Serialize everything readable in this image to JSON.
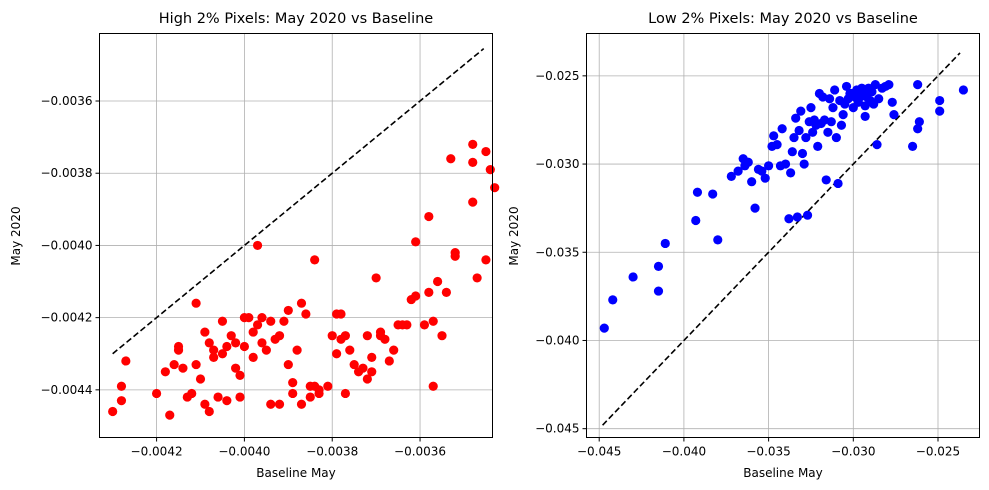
{
  "chart_data": [
    {
      "type": "scatter",
      "title": "High 2% Pixels: May 2020 vs Baseline",
      "xlabel": "Baseline May",
      "ylabel": "May 2020",
      "xlim": [
        -0.00433,
        -0.003435
      ],
      "ylim": [
        -0.004532,
        -0.003413
      ],
      "xticks": [
        -0.0042,
        -0.004,
        -0.0038,
        -0.0036
      ],
      "xtick_labels": [
        "−0.0042",
        "−0.0040",
        "−0.0038",
        "−0.0036"
      ],
      "yticks": [
        -0.0044,
        -0.0042,
        -0.004,
        -0.0038,
        -0.0036
      ],
      "ytick_labels": [
        "−0.0044",
        "−0.0042",
        "−0.0040",
        "−0.0038",
        "−0.0036"
      ],
      "grid": true,
      "marker_color": "#ff0000",
      "reference_line": {
        "x": [
          -0.0043,
          -0.003455
        ],
        "y": [
          -0.0043,
          -0.003455
        ],
        "style": "dashed",
        "color": "#000000"
      },
      "points": [
        [
          -0.0043,
          -0.00446
        ],
        [
          -0.00428,
          -0.00443
        ],
        [
          -0.00428,
          -0.00439
        ],
        [
          -0.00427,
          -0.00432
        ],
        [
          -0.0042,
          -0.00441
        ],
        [
          -0.00418,
          -0.00435
        ],
        [
          -0.00417,
          -0.00447
        ],
        [
          -0.00416,
          -0.00433
        ],
        [
          -0.00415,
          -0.00428
        ],
        [
          -0.00415,
          -0.00429
        ],
        [
          -0.00414,
          -0.00434
        ],
        [
          -0.00413,
          -0.00442
        ],
        [
          -0.00412,
          -0.00441
        ],
        [
          -0.00411,
          -0.00433
        ],
        [
          -0.00411,
          -0.00416
        ],
        [
          -0.0041,
          -0.00437
        ],
        [
          -0.00409,
          -0.00424
        ],
        [
          -0.00409,
          -0.00444
        ],
        [
          -0.00408,
          -0.00446
        ],
        [
          -0.00408,
          -0.00427
        ],
        [
          -0.00407,
          -0.00429
        ],
        [
          -0.00407,
          -0.00431
        ],
        [
          -0.00406,
          -0.00442
        ],
        [
          -0.00405,
          -0.0043
        ],
        [
          -0.00405,
          -0.00421
        ],
        [
          -0.00404,
          -0.00443
        ],
        [
          -0.00404,
          -0.00428
        ],
        [
          -0.00403,
          -0.00425
        ],
        [
          -0.00402,
          -0.00434
        ],
        [
          -0.00402,
          -0.00427
        ],
        [
          -0.00401,
          -0.00436
        ],
        [
          -0.00401,
          -0.00442
        ],
        [
          -0.004,
          -0.00428
        ],
        [
          -0.004,
          -0.0042
        ],
        [
          -0.00399,
          -0.0042
        ],
        [
          -0.00398,
          -0.00431
        ],
        [
          -0.00398,
          -0.00424
        ],
        [
          -0.00397,
          -0.004
        ],
        [
          -0.00397,
          -0.00422
        ],
        [
          -0.00396,
          -0.0042
        ],
        [
          -0.00396,
          -0.00427
        ],
        [
          -0.00395,
          -0.00429
        ],
        [
          -0.00394,
          -0.00421
        ],
        [
          -0.00394,
          -0.00444
        ],
        [
          -0.00393,
          -0.00426
        ],
        [
          -0.00392,
          -0.00425
        ],
        [
          -0.00392,
          -0.00444
        ],
        [
          -0.00391,
          -0.00421
        ],
        [
          -0.0039,
          -0.00418
        ],
        [
          -0.0039,
          -0.00433
        ],
        [
          -0.00389,
          -0.00438
        ],
        [
          -0.00389,
          -0.00441
        ],
        [
          -0.00388,
          -0.00429
        ],
        [
          -0.00387,
          -0.00444
        ],
        [
          -0.00387,
          -0.00416
        ],
        [
          -0.00386,
          -0.00419
        ],
        [
          -0.00385,
          -0.00442
        ],
        [
          -0.00385,
          -0.00439
        ],
        [
          -0.00384,
          -0.00404
        ],
        [
          -0.00384,
          -0.00439
        ],
        [
          -0.00383,
          -0.00441
        ],
        [
          -0.00383,
          -0.0044
        ],
        [
          -0.00381,
          -0.00439
        ],
        [
          -0.0038,
          -0.00425
        ],
        [
          -0.00379,
          -0.00419
        ],
        [
          -0.00379,
          -0.0043
        ],
        [
          -0.00378,
          -0.00419
        ],
        [
          -0.00378,
          -0.00426
        ],
        [
          -0.00377,
          -0.00425
        ],
        [
          -0.00377,
          -0.00441
        ],
        [
          -0.00376,
          -0.00429
        ],
        [
          -0.00375,
          -0.00433
        ],
        [
          -0.00374,
          -0.00435
        ],
        [
          -0.00373,
          -0.00434
        ],
        [
          -0.00372,
          -0.00425
        ],
        [
          -0.00372,
          -0.00437
        ],
        [
          -0.00371,
          -0.00435
        ],
        [
          -0.00371,
          -0.00431
        ],
        [
          -0.0037,
          -0.00409
        ],
        [
          -0.00369,
          -0.00425
        ],
        [
          -0.00369,
          -0.00424
        ],
        [
          -0.00368,
          -0.00426
        ],
        [
          -0.00367,
          -0.00432
        ],
        [
          -0.00366,
          -0.00429
        ],
        [
          -0.00365,
          -0.00422
        ],
        [
          -0.00364,
          -0.00422
        ],
        [
          -0.00363,
          -0.00422
        ],
        [
          -0.00362,
          -0.00415
        ],
        [
          -0.00361,
          -0.00414
        ],
        [
          -0.00361,
          -0.00399
        ],
        [
          -0.00359,
          -0.00422
        ],
        [
          -0.00358,
          -0.00413
        ],
        [
          -0.00358,
          -0.00392
        ],
        [
          -0.00357,
          -0.00439
        ],
        [
          -0.00357,
          -0.00421
        ],
        [
          -0.00356,
          -0.0041
        ],
        [
          -0.00355,
          -0.00425
        ],
        [
          -0.00354,
          -0.00413
        ],
        [
          -0.00353,
          -0.00376
        ],
        [
          -0.00352,
          -0.00402
        ],
        [
          -0.00352,
          -0.00403
        ],
        [
          -0.00348,
          -0.00388
        ],
        [
          -0.00348,
          -0.00372
        ],
        [
          -0.00348,
          -0.00377
        ],
        [
          -0.00347,
          -0.00409
        ],
        [
          -0.00345,
          -0.00404
        ],
        [
          -0.00345,
          -0.00374
        ],
        [
          -0.00344,
          -0.00379
        ],
        [
          -0.00343,
          -0.00384
        ]
      ]
    },
    {
      "type": "scatter",
      "title": "Low 2% Pixels: May 2020 vs Baseline",
      "xlabel": "Baseline May",
      "ylabel": "May 2020",
      "xlim": [
        -0.04575,
        -0.02255
      ],
      "ylim": [
        -0.0455,
        -0.0226
      ],
      "xticks": [
        -0.045,
        -0.04,
        -0.035,
        -0.03,
        -0.025
      ],
      "xtick_labels": [
        "−0.045",
        "−0.040",
        "−0.035",
        "−0.030",
        "−0.025"
      ],
      "yticks": [
        -0.045,
        -0.04,
        -0.035,
        -0.03,
        -0.025
      ],
      "ytick_labels": [
        "−0.045",
        "−0.040",
        "−0.035",
        "−0.030",
        "−0.025"
      ],
      "grid": true,
      "marker_color": "#0000ff",
      "reference_line": {
        "x": [
          -0.0448,
          -0.0237
        ],
        "y": [
          -0.0448,
          -0.0237
        ],
        "style": "dashed",
        "color": "#000000"
      },
      "points": [
        [
          -0.0447,
          -0.0393
        ],
        [
          -0.0442,
          -0.0377
        ],
        [
          -0.043,
          -0.0364
        ],
        [
          -0.0415,
          -0.0358
        ],
        [
          -0.0415,
          -0.0372
        ],
        [
          -0.0411,
          -0.0345
        ],
        [
          -0.0393,
          -0.0332
        ],
        [
          -0.0392,
          -0.0316
        ],
        [
          -0.0383,
          -0.0317
        ],
        [
          -0.038,
          -0.0343
        ],
        [
          -0.0372,
          -0.0307
        ],
        [
          -0.0368,
          -0.0304
        ],
        [
          -0.0365,
          -0.0297
        ],
        [
          -0.0364,
          -0.0301
        ],
        [
          -0.0362,
          -0.0299
        ],
        [
          -0.036,
          -0.031
        ],
        [
          -0.0358,
          -0.0325
        ],
        [
          -0.0356,
          -0.0303
        ],
        [
          -0.0354,
          -0.0304
        ],
        [
          -0.0352,
          -0.0308
        ],
        [
          -0.035,
          -0.0301
        ],
        [
          -0.0348,
          -0.029
        ],
        [
          -0.0347,
          -0.0284
        ],
        [
          -0.0345,
          -0.0289
        ],
        [
          -0.0343,
          -0.0301
        ],
        [
          -0.0342,
          -0.028
        ],
        [
          -0.034,
          -0.03
        ],
        [
          -0.0338,
          -0.0331
        ],
        [
          -0.0337,
          -0.0305
        ],
        [
          -0.0336,
          -0.0293
        ],
        [
          -0.0335,
          -0.0285
        ],
        [
          -0.0334,
          -0.0274
        ],
        [
          -0.0333,
          -0.033
        ],
        [
          -0.0332,
          -0.0281
        ],
        [
          -0.0331,
          -0.027
        ],
        [
          -0.033,
          -0.0294
        ],
        [
          -0.0329,
          -0.03
        ],
        [
          -0.0328,
          -0.0285
        ],
        [
          -0.0327,
          -0.0329
        ],
        [
          -0.0326,
          -0.0276
        ],
        [
          -0.0325,
          -0.0268
        ],
        [
          -0.0324,
          -0.0282
        ],
        [
          -0.0323,
          -0.0275
        ],
        [
          -0.0322,
          -0.0278
        ],
        [
          -0.0321,
          -0.029
        ],
        [
          -0.032,
          -0.026
        ],
        [
          -0.0319,
          -0.0277
        ],
        [
          -0.0318,
          -0.0262
        ],
        [
          -0.0317,
          -0.0275
        ],
        [
          -0.0316,
          -0.0309
        ],
        [
          -0.0315,
          -0.0282
        ],
        [
          -0.0314,
          -0.0263
        ],
        [
          -0.0313,
          -0.0276
        ],
        [
          -0.0312,
          -0.0268
        ],
        [
          -0.0311,
          -0.0258
        ],
        [
          -0.031,
          -0.0285
        ],
        [
          -0.0309,
          -0.0311
        ],
        [
          -0.0308,
          -0.0264
        ],
        [
          -0.0307,
          -0.0278
        ],
        [
          -0.0306,
          -0.0272
        ],
        [
          -0.0305,
          -0.0266
        ],
        [
          -0.0304,
          -0.0256
        ],
        [
          -0.0303,
          -0.0263
        ],
        [
          -0.0302,
          -0.026
        ],
        [
          -0.0301,
          -0.026
        ],
        [
          -0.03,
          -0.0268
        ],
        [
          -0.0299,
          -0.0262
        ],
        [
          -0.0298,
          -0.0258
        ],
        [
          -0.0297,
          -0.0265
        ],
        [
          -0.0296,
          -0.0262
        ],
        [
          -0.0295,
          -0.0257
        ],
        [
          -0.0294,
          -0.026
        ],
        [
          -0.0293,
          -0.0267
        ],
        [
          -0.0293,
          -0.0273
        ],
        [
          -0.0292,
          -0.0262
        ],
        [
          -0.0291,
          -0.0257
        ],
        [
          -0.029,
          -0.0264
        ],
        [
          -0.0289,
          -0.0259
        ],
        [
          -0.0288,
          -0.0266
        ],
        [
          -0.0287,
          -0.0255
        ],
        [
          -0.0286,
          -0.0289
        ],
        [
          -0.0285,
          -0.0263
        ],
        [
          -0.0283,
          -0.0257
        ],
        [
          -0.0281,
          -0.0256
        ],
        [
          -0.0279,
          -0.0255
        ],
        [
          -0.0277,
          -0.0265
        ],
        [
          -0.0276,
          -0.0272
        ],
        [
          -0.0265,
          -0.029
        ],
        [
          -0.0262,
          -0.028
        ],
        [
          -0.0262,
          -0.0255
        ],
        [
          -0.0261,
          -0.0276
        ],
        [
          -0.0249,
          -0.027
        ],
        [
          -0.0249,
          -0.0264
        ],
        [
          -0.0235,
          -0.0258
        ]
      ]
    }
  ]
}
